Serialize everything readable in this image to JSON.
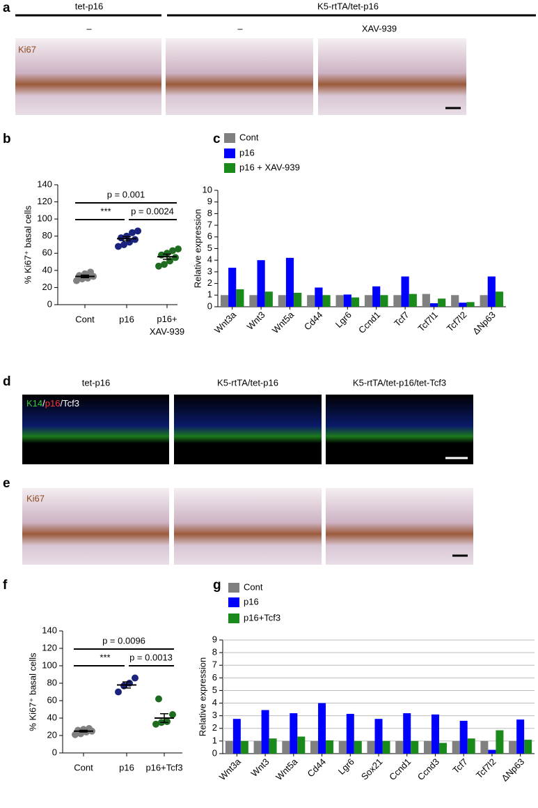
{
  "panels": {
    "a": {
      "letter": "a",
      "groups": [
        "tet-p16",
        "K5-rtTA/tet-p16"
      ],
      "treatments": [
        "–",
        "–",
        "XAV-939"
      ],
      "stain": "Ki67"
    },
    "b": {
      "letter": "b"
    },
    "c": {
      "letter": "c"
    },
    "d": {
      "letter": "d",
      "titles": [
        "tet-p16",
        "K5-rtTA/tet-p16",
        "K5-rtTA/tet-p16/tet-Tcf3"
      ],
      "stain": [
        "K14",
        "/",
        "p16",
        "/Tcf3"
      ]
    },
    "e": {
      "letter": "e",
      "stain": "Ki67"
    },
    "f": {
      "letter": "f"
    },
    "g": {
      "letter": "g"
    }
  },
  "chart_data": [
    {
      "type": "dotplot",
      "y_label": "% Ki67⁺ basal cells",
      "categories": [
        "Cont",
        "p16",
        "p16+\nXAV-939"
      ],
      "colors": [
        "#808080",
        "#1a237e",
        "#1f6b1f"
      ],
      "points": [
        [
          28,
          30,
          31,
          33,
          34,
          36,
          38
        ],
        [
          68,
          70,
          73,
          76,
          78,
          80,
          84,
          86
        ],
        [
          45,
          47,
          51,
          55,
          58,
          60,
          63,
          65
        ]
      ],
      "values": [
        33,
        77,
        56
      ],
      "errors": [
        1.5,
        2.5,
        3
      ],
      "ylim": [
        0,
        140
      ],
      "yticks": [
        0,
        20,
        40,
        60,
        80,
        100,
        120,
        140
      ],
      "annotations": [
        "p = 0.001",
        "***",
        "p = 0.0024"
      ]
    },
    {
      "type": "bar",
      "y_label": "Relative expression",
      "grid": false,
      "categories": [
        "Wnt3a",
        "Wnt3",
        "Wnt5a",
        "Cd44",
        "Lgr6",
        "Ccnd1",
        "Tcf7",
        "Tcf7l1",
        "Tcf7l2",
        "ΔNp63"
      ],
      "series": [
        {
          "name": "Cont",
          "color": "#808080",
          "values": [
            1,
            1,
            1,
            1,
            1,
            1,
            1,
            1.1,
            1,
            1
          ]
        },
        {
          "name": "p16",
          "color": "#0000ff",
          "values": [
            3.35,
            4.0,
            4.2,
            1.65,
            1.05,
            1.75,
            2.6,
            0.3,
            0.35,
            2.6
          ]
        },
        {
          "name": "p16 + XAV-939",
          "color": "#1a8a1a",
          "values": [
            1.5,
            1.3,
            1.2,
            1.0,
            0.8,
            1.0,
            1.1,
            0.7,
            0.4,
            1.3
          ]
        }
      ],
      "ylim": [
        0,
        10
      ],
      "yticks": [
        0,
        1,
        2,
        3,
        4,
        5,
        6,
        7,
        8,
        9,
        10
      ]
    },
    {
      "type": "dotplot",
      "y_label": "% Ki67⁺ basal cells",
      "categories": [
        "Cont",
        "p16",
        "p16+Tcf3"
      ],
      "colors": [
        "#808080",
        "#1a237e",
        "#1f6b1f"
      ],
      "points": [
        [
          21,
          22,
          24,
          25,
          26,
          27,
          28
        ],
        [
          70,
          77,
          80,
          86
        ],
        [
          33,
          35,
          36,
          44,
          62
        ]
      ],
      "values": [
        25,
        78,
        40
      ],
      "errors": [
        1,
        3.5,
        5
      ],
      "ylim": [
        0,
        140
      ],
      "yticks": [
        0,
        20,
        40,
        60,
        80,
        100,
        120,
        140
      ],
      "annotations": [
        "p = 0.0096",
        "***",
        "p = 0.0013"
      ]
    },
    {
      "type": "bar",
      "y_label": "Relative expression",
      "grid": true,
      "categories": [
        "Wnt3a",
        "Wnt3",
        "Wnt5a",
        "Cd44",
        "Lgr6",
        "Sox21",
        "Ccnd1",
        "Ccnd3",
        "Tcf7",
        "Tcf7l2",
        "ΔNp63"
      ],
      "series": [
        {
          "name": "Cont",
          "color": "#808080",
          "values": [
            1,
            1,
            1,
            1,
            1,
            1,
            1,
            1,
            1,
            1,
            1
          ]
        },
        {
          "name": "p16",
          "color": "#0000ff",
          "values": [
            2.75,
            3.45,
            3.2,
            4.0,
            3.15,
            2.75,
            3.2,
            3.1,
            2.6,
            0.3,
            2.7
          ]
        },
        {
          "name": "p16+Tcf3",
          "color": "#1a8a1a",
          "values": [
            1.0,
            1.2,
            1.35,
            1.05,
            1.0,
            1.0,
            1.0,
            0.85,
            1.2,
            1.85,
            1.1
          ]
        }
      ],
      "ylim": [
        0,
        9
      ],
      "yticks": [
        0,
        1,
        2,
        3,
        4,
        5,
        6,
        7,
        8,
        9
      ]
    }
  ]
}
